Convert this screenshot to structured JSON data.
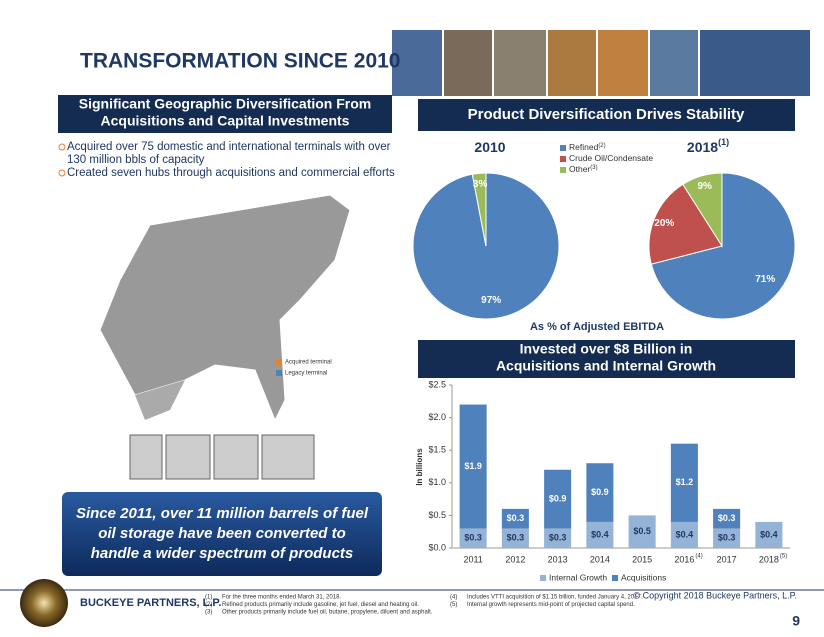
{
  "title": "TRANSFORMATION SINCE 2010",
  "left_panel": {
    "heading": [
      "Significant Geographic Diversification From",
      "Acquisitions and Capital Investments"
    ],
    "bullets": [
      [
        "Acquired over 75 domestic and international terminals with over",
        "130 million bbls of capacity"
      ],
      [
        "Created seven hubs through acquisitions and commercial efforts"
      ]
    ],
    "map_legend": [
      "Acquired terminal",
      "Legacy terminal"
    ],
    "callout": [
      "Since 2011, over 11 million barrels of fuel",
      "oil storage have been converted to",
      "handle a wider spectrum of products"
    ]
  },
  "right_panel": {
    "heading": "Product Diversification Drives Stability",
    "pie_caption": "As % of Adjusted EBITDA",
    "bar_heading": [
      "Invested over $8 Billion in",
      "Acquisitions and Internal Growth"
    ]
  },
  "chart_data": [
    {
      "type": "pie",
      "title": "2010",
      "categories": [
        "Refined",
        "Crude Oil/Condensate",
        "Other"
      ],
      "legend_notes": [
        "(2)",
        null,
        "(3)"
      ],
      "colors": [
        "#4f81bd",
        "#c0504d",
        "#9bbb59"
      ],
      "values": [
        97,
        0,
        3
      ],
      "value_labels": [
        "97%",
        null,
        "3%"
      ],
      "legend": true
    },
    {
      "type": "pie",
      "title": "2018",
      "title_note": "(1)",
      "categories": [
        "Refined",
        "Crude Oil/Condensate",
        "Other"
      ],
      "colors": [
        "#4f81bd",
        "#c0504d",
        "#9bbb59"
      ],
      "values": [
        71,
        20,
        9
      ],
      "value_labels": [
        "71%",
        "20%",
        "9%"
      ],
      "legend": false
    },
    {
      "type": "bar",
      "stacked": true,
      "ylabel": "In billions",
      "categories": [
        "2011",
        "2012",
        "2013",
        "2014",
        "2015",
        "2016",
        "2017",
        "2018"
      ],
      "category_notes": [
        null,
        null,
        null,
        null,
        null,
        "(4)",
        null,
        "(5)"
      ],
      "series": [
        {
          "name": "Internal Growth",
          "color": "#95b3d7",
          "values": [
            0.3,
            0.3,
            0.3,
            0.4,
            0.5,
            0.4,
            0.3,
            0.4
          ],
          "value_labels": [
            "$0.3",
            "$0.3",
            "$0.3",
            "$0.4",
            "$0.5",
            "$0.4",
            "$0.3",
            "$0.4"
          ]
        },
        {
          "name": "Acquisitions",
          "color": "#4f81bd",
          "values": [
            1.9,
            0.3,
            0.9,
            0.9,
            0,
            1.2,
            0.3,
            0
          ],
          "value_labels": [
            "$1.9",
            "$0.3",
            "$0.9",
            "$0.9",
            null,
            "$1.2",
            "$0.3",
            null
          ]
        }
      ],
      "ylim": [
        0,
        2.5
      ],
      "yticks": [
        {
          "value": 0,
          "label": "$0.0"
        },
        {
          "value": 0.5,
          "label": "$0.5"
        },
        {
          "value": 1,
          "label": "$1.0"
        },
        {
          "value": 1.5,
          "label": "$1.5"
        },
        {
          "value": 2,
          "label": "$2.0"
        },
        {
          "value": 2.5,
          "label": "$2.5"
        }
      ],
      "grid": false
    }
  ],
  "footer": {
    "company": "BUCKEYE PARTNERS, L.P.",
    "copyright": "© Copyright 2018 Buckeye Partners, L.P.",
    "page": "9",
    "notes": [
      {
        "mark": "(1)",
        "text": "For the three months ended March 31, 2018."
      },
      {
        "mark": "(2)",
        "text": "Refined products primarily include gasoline, jet fuel, diesel and heating oil."
      },
      {
        "mark": "(3)",
        "text": "Other products primarily include fuel oil, butane, propylene, diluent and asphalt."
      },
      {
        "mark": "(4)",
        "text": "Includes VTTI acquisition of $1.15 billion, funded January 4, 2017."
      },
      {
        "mark": "(5)",
        "text": "Internal growth represents mid-point of projected capital spend."
      }
    ]
  }
}
